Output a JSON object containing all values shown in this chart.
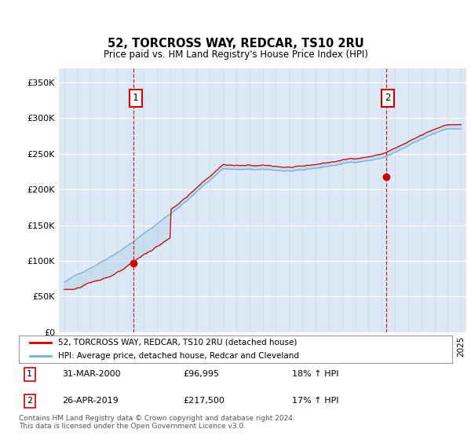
{
  "title": "52, TORCROSS WAY, REDCAR, TS10 2RU",
  "subtitle": "Price paid vs. HM Land Registry's House Price Index (HPI)",
  "background_color": "#dce8f5",
  "y_ticks": [
    0,
    50000,
    100000,
    150000,
    200000,
    250000,
    300000,
    350000
  ],
  "y_tick_labels": [
    "£0",
    "£50K",
    "£100K",
    "£150K",
    "£200K",
    "£250K",
    "£300K",
    "£350K"
  ],
  "x_start_year": 1995,
  "x_end_year": 2025,
  "sale1_year": 2000.25,
  "sale1_price": 96995,
  "sale1_text": "31-MAR-2000",
  "sale1_amount": "£96,995",
  "sale1_hpi": "18% ↑ HPI",
  "sale2_year": 2019.32,
  "sale2_price": 217500,
  "sale2_text": "26-APR-2019",
  "sale2_amount": "£217,500",
  "sale2_hpi": "17% ↑ HPI",
  "line_red": "#cc0000",
  "line_blue": "#7aadd4",
  "fill_blue": "#b8d4ea",
  "legend_label1": "52, TORCROSS WAY, REDCAR, TS10 2RU (detached house)",
  "legend_label2": "HPI: Average price, detached house, Redcar and Cleveland",
  "footer": "Contains HM Land Registry data © Crown copyright and database right 2024.\nThis data is licensed under the Open Government Licence v3.0."
}
